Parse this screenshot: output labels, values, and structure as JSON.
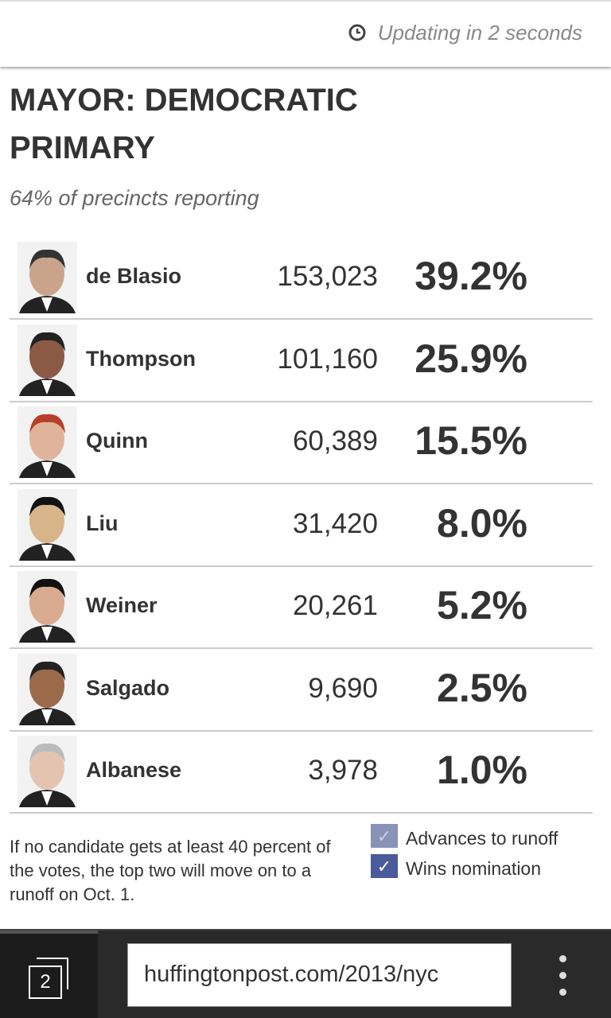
{
  "header": {
    "status": "Updating in 2 seconds"
  },
  "title": "MAYOR: DEMOCRATIC PRIMARY",
  "reporting": "64% of precincts reporting",
  "candidates": [
    {
      "name": "de Blasio",
      "votes": "153,023",
      "percent": "39.2%"
    },
    {
      "name": "Thompson",
      "votes": "101,160",
      "percent": "25.9%"
    },
    {
      "name": "Quinn",
      "votes": "60,389",
      "percent": "15.5%"
    },
    {
      "name": "Liu",
      "votes": "31,420",
      "percent": "8.0%"
    },
    {
      "name": "Weiner",
      "votes": "20,261",
      "percent": "5.2%"
    },
    {
      "name": "Salgado",
      "votes": "9,690",
      "percent": "2.5%"
    },
    {
      "name": "Albanese",
      "votes": "3,978",
      "percent": "1.0%"
    }
  ],
  "footnote": "If no candidate gets at least 40 percent of the votes, the top two will move on to a runoff on Oct. 1.",
  "legend": [
    "Advances to runoff",
    "Wins nomination"
  ],
  "browser": {
    "tabs": "2",
    "url": "huffingtonpost.com/2013/nyc"
  }
}
